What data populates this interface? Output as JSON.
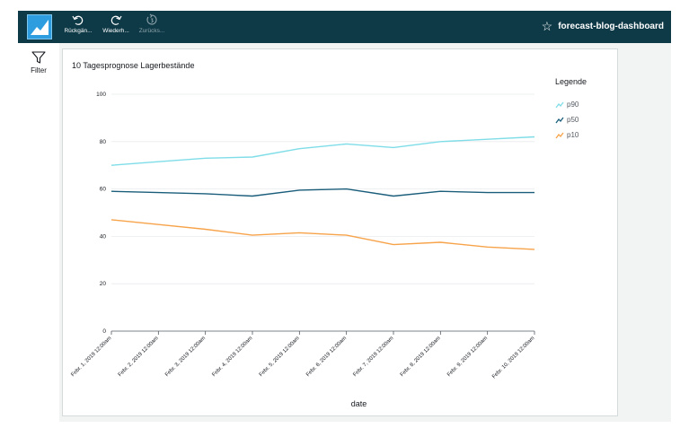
{
  "topbar": {
    "undo_label": "Rückgän...",
    "redo_label": "Wiederh...",
    "reset_label": "Zurücks...",
    "dashboard_title": "forecast-blog-dashboard",
    "background_color": "#0e3a47"
  },
  "sidebar": {
    "filter_label": "Filter"
  },
  "visual": {
    "title": "10 Tagesprognose Lagerbestände",
    "legend_title": "Legende",
    "x_axis_title": "date"
  },
  "chart_data": {
    "type": "line",
    "title": "10 Tagesprognose Lagerbestände",
    "xlabel": "date",
    "ylabel": "",
    "ylim": [
      0,
      100
    ],
    "yticks": [
      0,
      20,
      40,
      60,
      80,
      100
    ],
    "grid": "horizontal",
    "legend_position": "right",
    "x": [
      "Febr. 1, 2019 12:00am",
      "Febr. 2, 2019 12:00am",
      "Febr. 3, 2019 12:00am",
      "Febr. 4, 2019 12:00am",
      "Febr. 5, 2019 12:00am",
      "Febr. 6, 2019 12:00am",
      "Febr. 7, 2019 12:00am",
      "Febr. 8, 2019 12:00am",
      "Febr. 9, 2019 12:00am",
      "Febr. 10, 2019 12:00am"
    ],
    "series": [
      {
        "name": "p90",
        "color": "#7fdde8",
        "values": [
          70,
          71.5,
          73,
          73.5,
          77,
          79,
          77.5,
          80,
          81,
          82
        ]
      },
      {
        "name": "p50",
        "color": "#1b5e7b",
        "values": [
          59,
          58.5,
          58,
          57,
          59.5,
          60,
          57,
          59,
          58.5,
          58.5
        ]
      },
      {
        "name": "p10",
        "color": "#f7a34a",
        "values": [
          47,
          45,
          43,
          40.5,
          41.5,
          40.5,
          36.5,
          37.5,
          35.5,
          34.5
        ]
      }
    ]
  }
}
